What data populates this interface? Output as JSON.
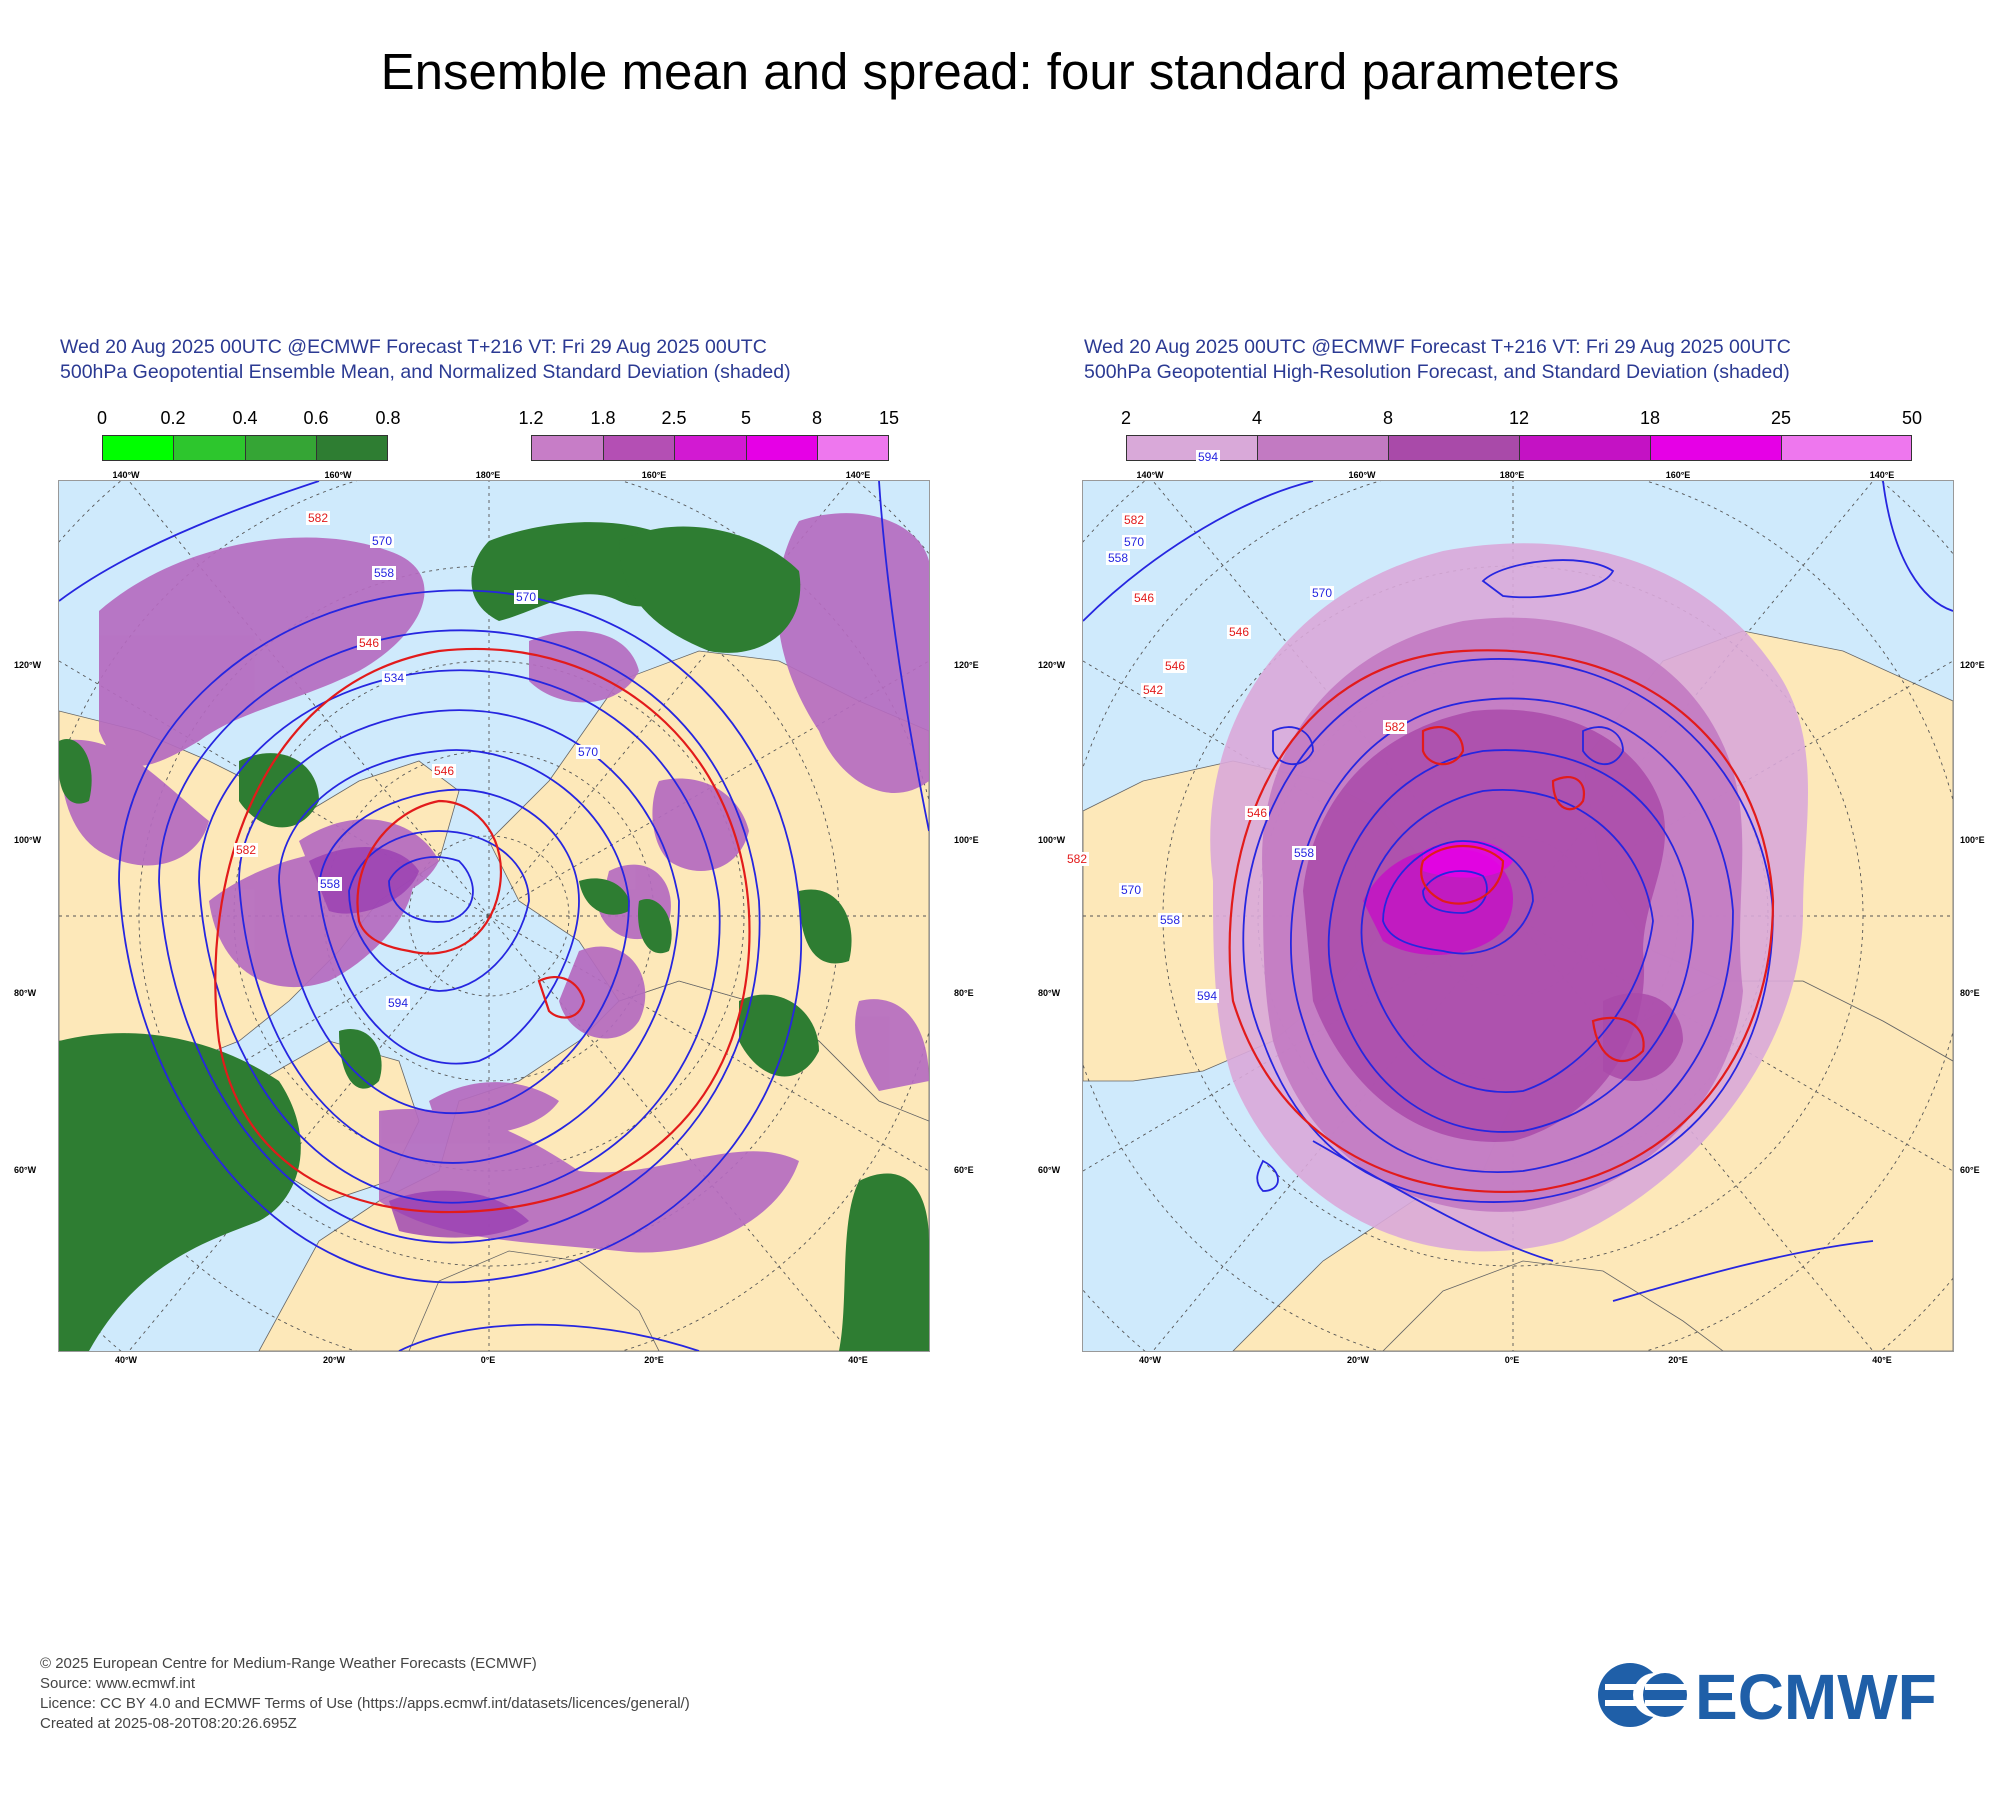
{
  "title": "Ensemble mean and spread: four standard parameters",
  "panels": [
    {
      "header_line1": "Wed 20 Aug 2025 00UTC @ECMWF Forecast T+216 VT: Fri 29 Aug 2025 00UTC",
      "header_line2": "500hPa Geopotential Ensemble Mean, and Normalized Standard Deviation (shaded)",
      "colorbar_green": {
        "ticks": [
          "0",
          "0.2",
          "0.4",
          "0.6",
          "0.8"
        ],
        "colors": [
          "#00ff00",
          "#2dc62d",
          "#35a535",
          "#2e7d32"
        ]
      },
      "colorbar_purple": {
        "ticks": [
          "1.2",
          "1.8",
          "2.5",
          "5",
          "8",
          "15"
        ],
        "colors": [
          "#c77dc7",
          "#b44fb4",
          "#d21ad2",
          "#e600e6",
          "#ee77ee"
        ]
      },
      "contour_labels": [
        "582",
        "570",
        "558",
        "534",
        "546",
        "546",
        "570",
        "570",
        "582",
        "594",
        "558"
      ]
    },
    {
      "header_line1": "Wed 20 Aug 2025 00UTC @ECMWF Forecast T+216 VT: Fri 29 Aug 2025 00UTC",
      "header_line2": "500hPa Geopotential High-Resolution Forecast, and Standard Deviation (shaded)",
      "colorbar": {
        "ticks": [
          "2",
          "4",
          "8",
          "12",
          "18",
          "25",
          "50"
        ],
        "colors": [
          "#d9a9d9",
          "#c27ac2",
          "#a94aa9",
          "#c412c4",
          "#e600e6",
          "#ee77ee"
        ]
      },
      "contour_labels": [
        "594",
        "582",
        "570",
        "558",
        "546",
        "546",
        "546",
        "542",
        "570",
        "582",
        "582",
        "546",
        "558",
        "570",
        "558",
        "594"
      ]
    }
  ],
  "map_labels": {
    "lon_top": [
      "140°W",
      "160°W",
      "180°E",
      "160°E",
      "140°E"
    ],
    "lon_bottom": [
      "40°W",
      "20°W",
      "0°E",
      "20°E",
      "40°E"
    ],
    "lon_left": [
      "120°W",
      "100°W",
      "80°W",
      "60°W"
    ],
    "lon_right": [
      "120°E",
      "100°E",
      "80°E",
      "60°E"
    ]
  },
  "footer": {
    "line1": "© 2025 European Centre for Medium-Range Weather Forecasts (ECMWF)",
    "line2": "Source: www.ecmwf.int",
    "line3": "Licence: CC BY 4.0 and ECMWF Terms of Use (https://apps.ecmwf.int/datasets/licences/general/)",
    "line4": "Created at 2025-08-20T08:20:26.695Z"
  },
  "logo_text": "ECMWF",
  "colors": {
    "ocean": "#cfeafc",
    "land": "#fde8b9",
    "contour_blue": "#2626e0",
    "contour_red": "#e21b1b",
    "header_text": "#2b3a93"
  }
}
